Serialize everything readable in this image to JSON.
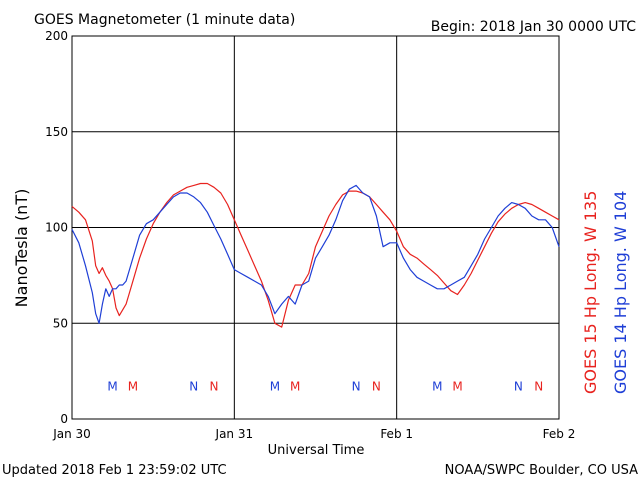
{
  "header": {
    "title": "GOES Magnetometer (1 minute data)",
    "begin": "Begin:  2018 Jan 30 0000 UTC"
  },
  "footer": {
    "updated": "Updated 2018 Feb  1 23:59:02 UTC",
    "source": "NOAA/SWPC Boulder, CO USA"
  },
  "chart_data": {
    "type": "line",
    "xlabel": "Universal Time",
    "ylabel": "NanoTesla (nT)",
    "xlim": [
      0,
      72
    ],
    "ylim": [
      0,
      200
    ],
    "x_unit": "hours since 2018 Jan 30 0000 UTC",
    "yticks": [
      0,
      50,
      100,
      150,
      200
    ],
    "xticks": [
      {
        "x": 0,
        "label": "Jan 30"
      },
      {
        "x": 24,
        "label": "Jan 31"
      },
      {
        "x": 48,
        "label": "Feb 1"
      },
      {
        "x": 72,
        "label": "Feb 2"
      }
    ],
    "grid": true,
    "series": [
      {
        "name": "GOES 15 Hp  Long. W 135",
        "color": "#e8231f",
        "x": [
          0,
          1,
          2,
          3,
          3.5,
          4,
          4.5,
          5,
          5.5,
          6,
          6.5,
          7,
          7.5,
          8,
          9,
          10,
          11,
          12,
          13,
          14,
          15,
          16,
          17,
          18,
          19,
          20,
          21,
          22,
          23,
          24,
          25,
          26,
          27,
          28,
          29,
          30,
          31,
          32,
          33,
          34,
          35,
          36,
          37,
          38,
          39,
          40,
          41,
          42,
          43,
          44,
          45,
          46,
          47,
          48,
          49,
          50,
          51,
          52,
          53,
          54,
          55,
          56,
          57,
          58,
          59,
          60,
          61,
          62,
          63,
          64,
          65,
          66,
          67,
          68,
          69,
          70,
          71,
          72
        ],
        "y": [
          111,
          108,
          104,
          93,
          80,
          76,
          79,
          75,
          72,
          68,
          58,
          54,
          57,
          60,
          72,
          84,
          94,
          102,
          108,
          113,
          117,
          119,
          121,
          122,
          123,
          123,
          121,
          118,
          112,
          104,
          96,
          88,
          80,
          72,
          62,
          50,
          48,
          62,
          70,
          70,
          76,
          90,
          98,
          106,
          112,
          117,
          119,
          119,
          118,
          116,
          112,
          108,
          104,
          98,
          90,
          86,
          84,
          81,
          78,
          75,
          71,
          67,
          65,
          70,
          76,
          83,
          90,
          97,
          103,
          107,
          110,
          112,
          113,
          112,
          110,
          108,
          106,
          104
        ]
      },
      {
        "name": "GOES 14 Hp  Long. W 104",
        "color": "#1f3fd6",
        "x": [
          0,
          1,
          2,
          3,
          3.5,
          4,
          4.5,
          5,
          5.5,
          6,
          6.5,
          7,
          7.5,
          8,
          9,
          10,
          11,
          12,
          13,
          14,
          15,
          16,
          17,
          18,
          19,
          20,
          21,
          22,
          23,
          24,
          25,
          26,
          27,
          28,
          29,
          30,
          31,
          32,
          33,
          34,
          35,
          36,
          37,
          38,
          39,
          40,
          41,
          42,
          43,
          44,
          45,
          46,
          47,
          48,
          49,
          50,
          51,
          52,
          53,
          54,
          55,
          56,
          57,
          58,
          59,
          60,
          61,
          62,
          63,
          64,
          65,
          66,
          67,
          68,
          69,
          70,
          71,
          72
        ],
        "y": [
          99,
          92,
          80,
          66,
          55,
          50,
          60,
          68,
          64,
          68,
          68,
          70,
          70,
          72,
          84,
          96,
          102,
          104,
          108,
          112,
          116,
          118,
          118,
          116,
          113,
          108,
          101,
          94,
          86,
          78,
          76,
          74,
          72,
          70,
          64,
          55,
          60,
          64,
          60,
          70,
          72,
          84,
          90,
          96,
          104,
          114,
          120,
          122,
          118,
          116,
          106,
          90,
          92,
          92,
          84,
          78,
          74,
          72,
          70,
          68,
          68,
          70,
          72,
          74,
          80,
          86,
          94,
          100,
          106,
          110,
          113,
          112,
          110,
          106,
          104,
          104,
          100,
          90
        ]
      }
    ],
    "markers": [
      {
        "x": 6.0,
        "label": "M",
        "series": "GOES 14 Hp  Long. W 104",
        "color": "#1f3fd6"
      },
      {
        "x": 9.0,
        "label": "M",
        "series": "GOES 15 Hp  Long. W 135",
        "color": "#e8231f"
      },
      {
        "x": 18.0,
        "label": "N",
        "series": "GOES 14 Hp  Long. W 104",
        "color": "#1f3fd6"
      },
      {
        "x": 21.0,
        "label": "N",
        "series": "GOES 15 Hp  Long. W 135",
        "color": "#e8231f"
      },
      {
        "x": 30.0,
        "label": "M",
        "series": "GOES 14 Hp  Long. W 104",
        "color": "#1f3fd6"
      },
      {
        "x": 33.0,
        "label": "M",
        "series": "GOES 15 Hp  Long. W 135",
        "color": "#e8231f"
      },
      {
        "x": 42.0,
        "label": "N",
        "series": "GOES 14 Hp  Long. W 104",
        "color": "#1f3fd6"
      },
      {
        "x": 45.0,
        "label": "N",
        "series": "GOES 15 Hp  Long. W 135",
        "color": "#e8231f"
      },
      {
        "x": 54.0,
        "label": "M",
        "series": "GOES 14 Hp  Long. W 104",
        "color": "#1f3fd6"
      },
      {
        "x": 57.0,
        "label": "M",
        "series": "GOES 15 Hp  Long. W 135",
        "color": "#e8231f"
      },
      {
        "x": 66.0,
        "label": "N",
        "series": "GOES 14 Hp  Long. W 104",
        "color": "#1f3fd6"
      },
      {
        "x": 69.0,
        "label": "N",
        "series": "GOES 15 Hp  Long. W 135",
        "color": "#e8231f"
      }
    ],
    "marker_y": 17
  }
}
